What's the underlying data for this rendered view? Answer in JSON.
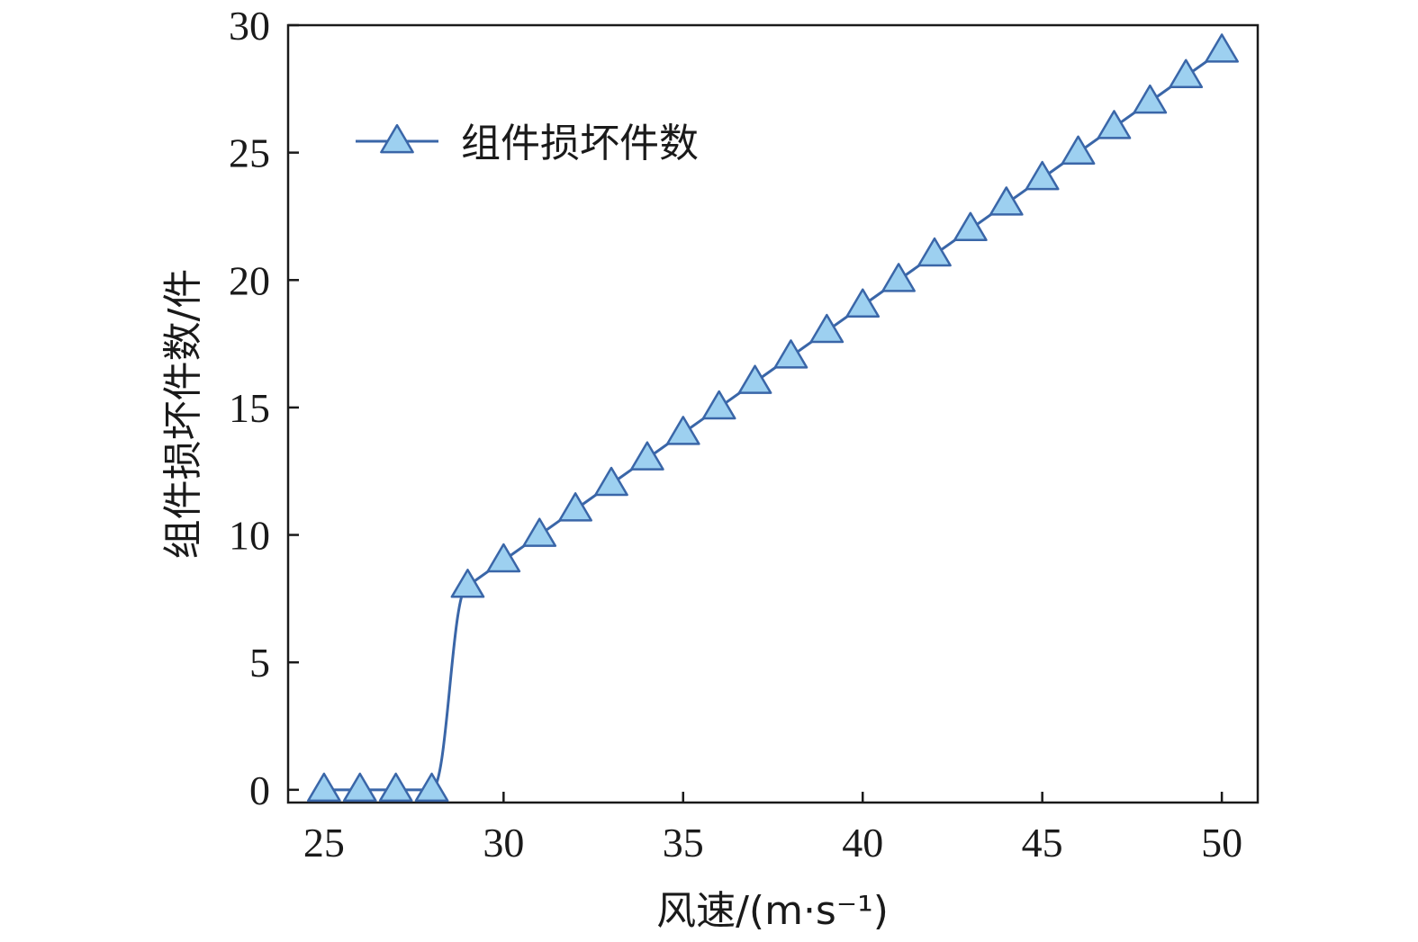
{
  "chart_data": {
    "type": "line",
    "title": "",
    "xlabel": "风速/(m·s⁻¹)",
    "ylabel": "组件损坏件数/件",
    "xlim": [
      24,
      51
    ],
    "ylim": [
      -0.5,
      30
    ],
    "xticks": [
      25,
      30,
      35,
      40,
      45,
      50
    ],
    "yticks": [
      0,
      5,
      10,
      15,
      20,
      25,
      30
    ],
    "grid": false,
    "legend_position": "top-left",
    "series": [
      {
        "name": "组件损坏件数",
        "color": "#3a66a8",
        "marker": "triangle",
        "marker_fill": "#9dd0f0",
        "x": [
          25,
          26,
          27,
          28,
          29,
          30,
          31,
          32,
          33,
          34,
          35,
          36,
          37,
          38,
          39,
          40,
          41,
          42,
          43,
          44,
          45,
          46,
          47,
          48,
          49,
          50
        ],
        "y": [
          0,
          0,
          0,
          0,
          8,
          9,
          10,
          11,
          12,
          13,
          14,
          15,
          16,
          17,
          18,
          19,
          20,
          21,
          22,
          23,
          24,
          25,
          26,
          27,
          28,
          29
        ]
      }
    ]
  }
}
